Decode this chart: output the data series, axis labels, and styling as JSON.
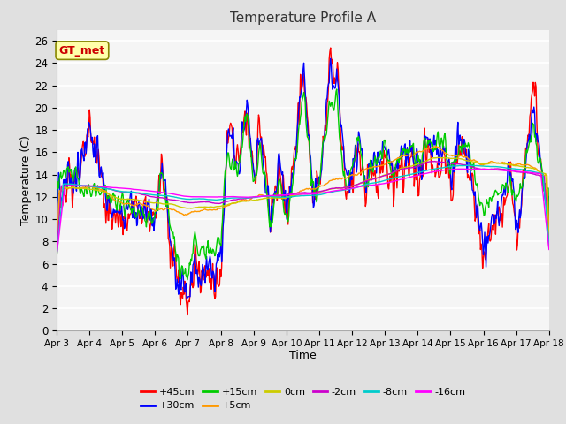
{
  "title": "Temperature Profile A",
  "xlabel": "Time",
  "ylabel": "Temperature (C)",
  "ylim": [
    0,
    27
  ],
  "yticks": [
    0,
    2,
    4,
    6,
    8,
    10,
    12,
    14,
    16,
    18,
    20,
    22,
    24,
    26
  ],
  "x_tick_labels": [
    "Apr 3",
    "Apr 4",
    "Apr 5",
    "Apr 6",
    "Apr 7",
    "Apr 8",
    "Apr 9",
    "Apr 10",
    "Apr 11",
    "Apr 12",
    "Apr 13",
    "Apr 14",
    "Apr 15",
    "Apr 16",
    "Apr 17",
    "Apr 18"
  ],
  "series_labels": [
    "+45cm",
    "+30cm",
    "+15cm",
    "+5cm",
    "0cm",
    "-2cm",
    "-8cm",
    "-16cm"
  ],
  "series_colors": [
    "#ff0000",
    "#0000ff",
    "#00cc00",
    "#ff9900",
    "#cccc00",
    "#cc00cc",
    "#00cccc",
    "#ff00ff"
  ],
  "annotation_text": "GT_met",
  "bg_color": "#e8e8e8",
  "plot_bg_color": "#f5f5f5"
}
